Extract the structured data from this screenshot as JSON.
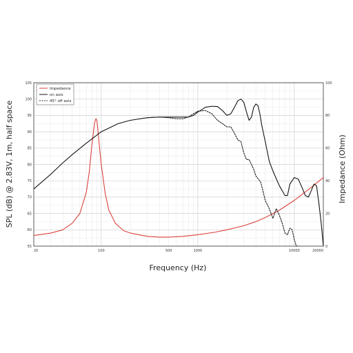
{
  "chart_data": {
    "type": "line",
    "title": "",
    "xlabel": "Frequency (Hz)",
    "ylabel_left": "SPL (dB) @ 2.83V, 1m, half space",
    "ylabel_right": "Impedance (Ohm)",
    "x_scale": "log",
    "xlim": [
      20,
      20000
    ],
    "ylim_left": [
      55,
      105
    ],
    "ylim_right": [
      0,
      100
    ],
    "x_ticks": [
      20,
      100,
      500,
      1000,
      10000,
      20000
    ],
    "x_tick_labels": [
      "20",
      "100",
      "500",
      "1000",
      "10000",
      "20000"
    ],
    "y_ticks_left": [
      55,
      60,
      65,
      70,
      75,
      80,
      85,
      90,
      95,
      100,
      105
    ],
    "y_tick_labels_left": [
      "55",
      "60",
      "65",
      "70",
      "75",
      "80",
      "85",
      "90",
      "95",
      "100",
      "105"
    ],
    "y_ticks_right": [
      0,
      20,
      40,
      60,
      80,
      100
    ],
    "y_tick_labels_right": [
      "0",
      "20",
      "40",
      "60",
      "80",
      "100"
    ],
    "grid": true,
    "legend_position": "top-left",
    "series": [
      {
        "name": "Impedance",
        "axis": "right",
        "color": "#d9413b",
        "style": "solid",
        "x": [
          20,
          30,
          40,
          50,
          60,
          70,
          75,
          80,
          85,
          88,
          90,
          92,
          95,
          100,
          110,
          120,
          140,
          170,
          200,
          300,
          400,
          500,
          700,
          1000,
          1500,
          2000,
          3000,
          4000,
          5000,
          7000,
          10000,
          15000,
          20000
        ],
        "y": [
          6.5,
          8,
          10,
          14,
          20,
          33,
          45,
          62,
          75,
          78,
          77,
          72,
          63,
          50,
          32,
          22,
          14,
          9.5,
          8,
          6,
          5.5,
          5.5,
          6,
          7,
          8.5,
          10,
          12.5,
          15,
          17.5,
          22,
          28,
          36,
          42
        ]
      },
      {
        "name": "on axis",
        "axis": "left",
        "color": "#111111",
        "style": "solid",
        "x": [
          20,
          30,
          40,
          50,
          70,
          100,
          150,
          200,
          300,
          400,
          500,
          600,
          700,
          800,
          900,
          1000,
          1200,
          1400,
          1600,
          1800,
          2000,
          2200,
          2400,
          2600,
          2800,
          3000,
          3200,
          3400,
          3600,
          3800,
          4000,
          4200,
          4400,
          4600,
          5000,
          5500,
          6000,
          7000,
          8000,
          8500,
          9000,
          10000,
          11000,
          12000,
          13000,
          14000,
          15000,
          16000,
          17000,
          18000,
          19000,
          20000
        ],
        "y": [
          72.5,
          77,
          80.5,
          83,
          86.5,
          90,
          92.5,
          93.5,
          94.3,
          94.5,
          94.5,
          94.5,
          94.5,
          94.5,
          95,
          96,
          97.5,
          97.8,
          97.7,
          96.5,
          95,
          95.5,
          97.5,
          99.5,
          100,
          99,
          96,
          93.5,
          94.5,
          97.5,
          98.5,
          98,
          95.5,
          92,
          87,
          81,
          78,
          73.5,
          70.5,
          70.5,
          74,
          76,
          75.5,
          73,
          70.5,
          70,
          72,
          74,
          73.5,
          68,
          62,
          55
        ]
      },
      {
        "name": "45° off axis",
        "axis": "left",
        "color": "#222222",
        "style": "dashed",
        "x": [
          300,
          400,
          500,
          600,
          700,
          800,
          900,
          1000,
          1200,
          1400,
          1600,
          1800,
          2000,
          2200,
          2400,
          2600,
          2800,
          3000,
          3200,
          3400,
          3600,
          3800,
          4000,
          4500,
          5000,
          5500,
          6000,
          6500,
          7000,
          7500,
          8000,
          8500,
          9000,
          9500,
          10000,
          10500,
          11000
        ],
        "y": [
          94.3,
          94.5,
          94.3,
          94,
          94,
          94.5,
          95.5,
          96.3,
          96.5,
          95.5,
          93.5,
          92.5,
          91.5,
          91.5,
          89.5,
          87.5,
          87,
          83.5,
          81.5,
          81.5,
          80,
          78.5,
          76.5,
          74.5,
          69,
          66.5,
          63.5,
          66.5,
          64.5,
          62,
          59,
          58.5,
          60.5,
          60,
          57,
          55,
          55
        ]
      }
    ]
  }
}
